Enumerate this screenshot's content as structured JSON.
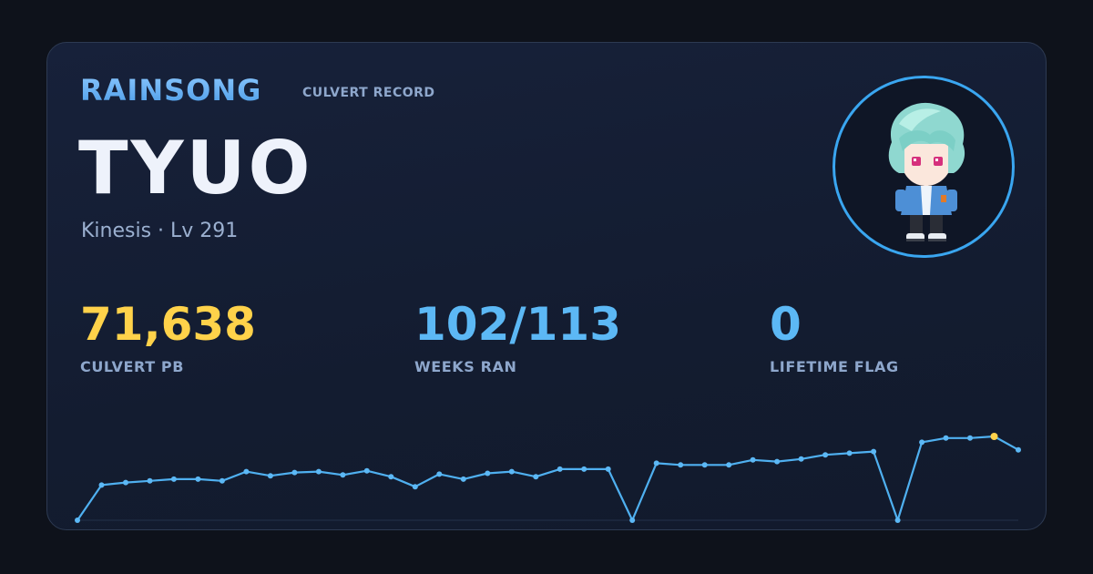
{
  "header": {
    "brand": "RAINSONG",
    "subtitle": "CULVERT RECORD"
  },
  "character": {
    "name": "TYUO",
    "meta": "Kinesis · Lv 291",
    "avatar_icon": "character-sprite-icon"
  },
  "stats": {
    "pb": {
      "value": "71,638",
      "label": "CULVERT PB"
    },
    "weeks": {
      "value": "102/113",
      "label": "WEEKS RAN"
    },
    "flag": {
      "value": "0",
      "label": "LIFETIME FLAG"
    }
  },
  "colors": {
    "accent": "#3aa6f0",
    "pb": "#ffd24a",
    "line": "#5cb8f5"
  },
  "chart_data": {
    "type": "line",
    "values": [
      0,
      42,
      45,
      47,
      49,
      49,
      47,
      58,
      53,
      57,
      58,
      54,
      59,
      52,
      40,
      55,
      49,
      56,
      58,
      52,
      61,
      61,
      61,
      0,
      68,
      66,
      66,
      66,
      72,
      70,
      73,
      78,
      80,
      82,
      0,
      93,
      98,
      98,
      100,
      84
    ],
    "highlight_index": 38,
    "ylim": [
      0,
      100
    ],
    "grid": false,
    "title": "",
    "xlabel": "",
    "ylabel": ""
  }
}
